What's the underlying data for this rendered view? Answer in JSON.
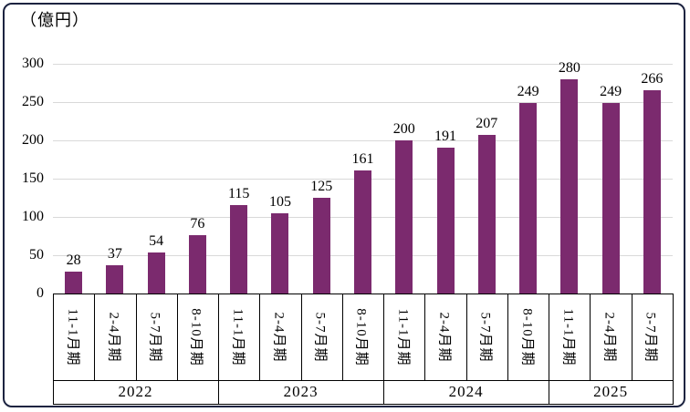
{
  "chart_data": {
    "type": "bar",
    "title": "",
    "unit_label": "（億円）",
    "ylabel": "（億円）",
    "xlabel": "",
    "ylim": [
      0,
      300
    ],
    "yticks": [
      0,
      50,
      100,
      150,
      200,
      250,
      300
    ],
    "grid": true,
    "legend": false,
    "data_labels": true,
    "categories": [
      "11-1月期",
      "2-4月期",
      "5-7月期",
      "8-10月期",
      "11-1月期",
      "2-4月期",
      "5-7月期",
      "8-10月期",
      "11-1月期",
      "2-4月期",
      "5-7月期",
      "8-10月期",
      "11-1月期",
      "2-4月期",
      "5-7月期"
    ],
    "values": [
      28,
      37,
      54,
      76,
      115,
      105,
      125,
      161,
      200,
      191,
      207,
      249,
      280,
      249,
      266
    ],
    "year_groups": [
      {
        "label": "2022",
        "span": 4
      },
      {
        "label": "2023",
        "span": 4
      },
      {
        "label": "2024",
        "span": 4
      },
      {
        "label": "2025",
        "span": 3
      }
    ],
    "groups": [
      {
        "year": "2022",
        "quarters": [
          "11-1月期",
          "2-4月期",
          "5-7月期",
          "8-10月期"
        ],
        "values": [
          28,
          37,
          54,
          76
        ]
      },
      {
        "year": "2023",
        "quarters": [
          "11-1月期",
          "2-4月期",
          "5-7月期",
          "8-10月期"
        ],
        "values": [
          115,
          105,
          125,
          161
        ]
      },
      {
        "year": "2024",
        "quarters": [
          "11-1月期",
          "2-4月期",
          "5-7月期",
          "8-10月期"
        ],
        "values": [
          200,
          191,
          207,
          249
        ]
      },
      {
        "year": "2025",
        "quarters": [
          "11-1月期",
          "2-4月期",
          "5-7月期"
        ],
        "values": [
          280,
          249,
          266
        ]
      }
    ],
    "bar_color": "#7B2A6E",
    "gridline_color": "#D9D9D9",
    "axis_color": "#000000",
    "frame_border_color": "#1C2340",
    "text_color": "#000000"
  }
}
